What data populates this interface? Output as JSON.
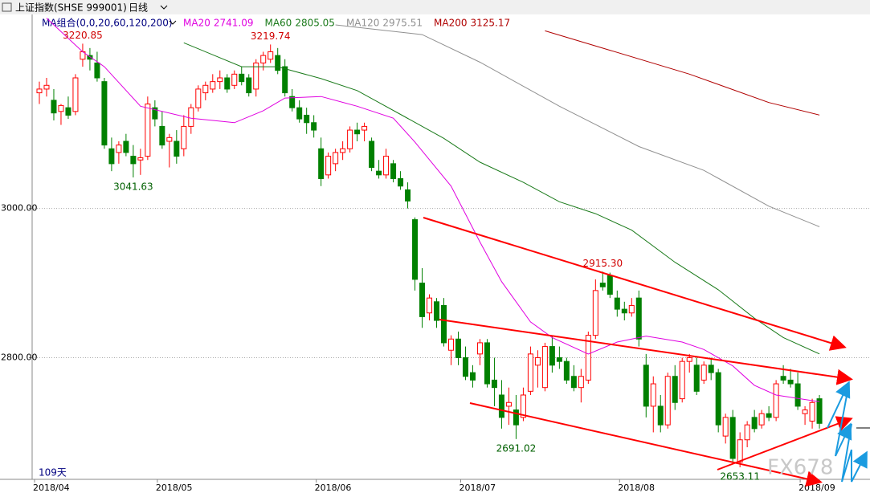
{
  "chart_data": {
    "type": "candlestick",
    "title": "上证指数(SHSE 999001)",
    "period": "日线",
    "indicator": "MA组合(0,0,20,60,120,200)",
    "day_count": "109天",
    "watermark": "FX678",
    "up_color": "#ff0000",
    "down_color": "#008000",
    "grid": true,
    "xlim": [
      -1,
      115
    ],
    "ylim": [
      2637,
      3260
    ],
    "yticks": [
      {
        "value": 2800,
        "label": "2800.00"
      },
      {
        "value": 3000,
        "label": "3000.00"
      }
    ],
    "xticks": [
      {
        "value": 0,
        "label": "2018/04"
      },
      {
        "value": 17,
        "label": "2018/05"
      },
      {
        "value": 39,
        "label": "2018/06"
      },
      {
        "value": 59,
        "label": "2018/07"
      },
      {
        "value": 81,
        "label": "2018/08"
      },
      {
        "value": 106,
        "label": "2018/09"
      }
    ],
    "candles": [
      [
        3155,
        3170,
        3140,
        3160
      ],
      [
        3160,
        3175,
        3150,
        3165
      ],
      [
        3145,
        3160,
        3118,
        3128
      ],
      [
        3130,
        3140,
        3112,
        3138
      ],
      [
        3135,
        3150,
        3120,
        3125
      ],
      [
        3130,
        3180,
        3125,
        3175
      ],
      [
        3200,
        3220.85,
        3190,
        3210
      ],
      [
        3205,
        3215,
        3185,
        3200
      ],
      [
        3195,
        3210,
        3170,
        3175
      ],
      [
        3170,
        3175,
        3080,
        3085
      ],
      [
        3080,
        3095,
        3050,
        3060
      ],
      [
        3075,
        3090,
        3060,
        3085
      ],
      [
        3090,
        3100,
        3070,
        3075
      ],
      [
        3070,
        3085,
        3041.63,
        3060
      ],
      [
        3065,
        3080,
        3045,
        3068
      ],
      [
        3070,
        3150,
        3065,
        3140
      ],
      [
        3135,
        3145,
        3110,
        3120
      ],
      [
        3110,
        3130,
        3080,
        3085
      ],
      [
        3090,
        3100,
        3055,
        3095
      ],
      [
        3090,
        3105,
        3060,
        3070
      ],
      [
        3080,
        3125,
        3070,
        3110
      ],
      [
        3110,
        3140,
        3100,
        3135
      ],
      [
        3135,
        3165,
        3130,
        3160
      ],
      [
        3155,
        3170,
        3145,
        3165
      ],
      [
        3160,
        3180,
        3155,
        3170
      ],
      [
        3170,
        3185,
        3160,
        3175
      ],
      [
        3175,
        3180,
        3155,
        3160
      ],
      [
        3165,
        3185,
        3160,
        3180
      ],
      [
        3180,
        3190,
        3165,
        3170
      ],
      [
        3175,
        3180,
        3150,
        3155
      ],
      [
        3160,
        3200,
        3150,
        3195
      ],
      [
        3195,
        3210,
        3185,
        3205
      ],
      [
        3200,
        3219.74,
        3195,
        3210
      ],
      [
        3205,
        3215,
        3180,
        3185
      ],
      [
        3190,
        3200,
        3150,
        3155
      ],
      [
        3150,
        3160,
        3130,
        3135
      ],
      [
        3135,
        3145,
        3115,
        3120
      ],
      [
        3125,
        3135,
        3100,
        3115
      ],
      [
        3115,
        3125,
        3095,
        3105
      ],
      [
        3080,
        3095,
        3030,
        3040
      ],
      [
        3045,
        3075,
        3040,
        3070
      ],
      [
        3060,
        3080,
        3050,
        3075
      ],
      [
        3075,
        3090,
        3065,
        3080
      ],
      [
        3080,
        3110,
        3075,
        3105
      ],
      [
        3105,
        3115,
        3090,
        3100
      ],
      [
        3105,
        3115,
        3090,
        3110
      ],
      [
        3090,
        3095,
        3050,
        3055
      ],
      [
        3050,
        3065,
        3040,
        3045
      ],
      [
        3045,
        3080,
        3040,
        3070
      ],
      [
        3060,
        3065,
        3035,
        3040
      ],
      [
        3040,
        3050,
        3025,
        3030
      ],
      [
        3025,
        3035,
        3000,
        3010
      ],
      [
        2985,
        2988,
        2890,
        2905
      ],
      [
        2900,
        2920,
        2840,
        2855
      ],
      [
        2860,
        2885,
        2850,
        2880
      ],
      [
        2875,
        2880,
        2840,
        2850
      ],
      [
        2870,
        2880,
        2815,
        2820
      ],
      [
        2810,
        2830,
        2790,
        2825
      ],
      [
        2825,
        2835,
        2790,
        2800
      ],
      [
        2800,
        2815,
        2770,
        2775
      ],
      [
        2780,
        2790,
        2760,
        2770
      ],
      [
        2805,
        2825,
        2790,
        2820
      ],
      [
        2820,
        2825,
        2760,
        2765
      ],
      [
        2770,
        2800,
        2735,
        2760
      ],
      [
        2750,
        2770,
        2705,
        2720
      ],
      [
        2735,
        2760,
        2710,
        2740
      ],
      [
        2730,
        2750,
        2691.02,
        2710
      ],
      [
        2720,
        2760,
        2715,
        2750
      ],
      [
        2755,
        2815,
        2750,
        2805
      ],
      [
        2790,
        2810,
        2760,
        2800
      ],
      [
        2760,
        2820,
        2755,
        2815
      ],
      [
        2815,
        2830,
        2780,
        2790
      ],
      [
        2800,
        2815,
        2785,
        2795
      ],
      [
        2795,
        2800,
        2765,
        2770
      ],
      [
        2775,
        2790,
        2755,
        2760
      ],
      [
        2760,
        2785,
        2740,
        2775
      ],
      [
        2770,
        2835,
        2765,
        2830
      ],
      [
        2830,
        2905,
        2825,
        2890
      ],
      [
        2900,
        2915.3,
        2890,
        2895
      ],
      [
        2910,
        2914,
        2880,
        2885
      ],
      [
        2880,
        2890,
        2855,
        2865
      ],
      [
        2865,
        2875,
        2850,
        2860
      ],
      [
        2860,
        2880,
        2855,
        2870
      ],
      [
        2880,
        2890,
        2815,
        2825
      ],
      [
        2790,
        2805,
        2720,
        2735
      ],
      [
        2735,
        2775,
        2700,
        2765
      ],
      [
        2735,
        2750,
        2700,
        2710
      ],
      [
        2710,
        2780,
        2705,
        2775
      ],
      [
        2775,
        2790,
        2730,
        2740
      ],
      [
        2745,
        2800,
        2740,
        2795
      ],
      [
        2795,
        2805,
        2780,
        2800
      ],
      [
        2790,
        2800,
        2750,
        2755
      ],
      [
        2770,
        2795,
        2765,
        2790
      ],
      [
        2790,
        2800,
        2770,
        2780
      ],
      [
        2780,
        2785,
        2700,
        2710
      ],
      [
        2695,
        2725,
        2685,
        2720
      ],
      [
        2720,
        2730,
        2660,
        2665
      ],
      [
        2660,
        2700,
        2653.11,
        2690
      ],
      [
        2690,
        2715,
        2680,
        2710
      ],
      [
        2720,
        2730,
        2700,
        2705
      ],
      [
        2710,
        2730,
        2705,
        2725
      ],
      [
        2725,
        2735,
        2715,
        2720
      ],
      [
        2720,
        2770,
        2715,
        2765
      ],
      [
        2775,
        2790,
        2765,
        2770
      ],
      [
        2770,
        2785,
        2760,
        2765
      ],
      [
        2765,
        2780,
        2730,
        2735
      ],
      [
        2725,
        2735,
        2710,
        2730
      ],
      [
        2715,
        2745,
        2705,
        2740
      ],
      [
        2745,
        2750,
        2705,
        2712
      ]
    ],
    "series": [
      {
        "name": "MA20",
        "color": "#e000e0",
        "x": [
          1,
          6,
          9,
          14,
          21,
          27,
          31,
          34,
          39,
          44,
          49,
          52,
          57,
          61,
          64,
          68,
          71,
          76,
          80,
          84,
          89,
          92,
          96,
          99,
          102,
          108
        ],
        "values": [
          3255,
          3210,
          3190,
          3137,
          3121,
          3115,
          3131,
          3148,
          3150,
          3137,
          3121,
          3089,
          3030,
          2955,
          2902,
          2848,
          2827,
          2805,
          2821,
          2829,
          2821,
          2811,
          2789,
          2763,
          2750,
          2741.09
        ]
      },
      {
        "name": "MA60",
        "color": "#1a7a1a",
        "x": [
          20,
          28,
          33,
          39,
          44,
          50,
          56,
          61,
          67,
          72,
          77,
          82,
          88,
          94,
          99,
          103,
          108
        ],
        "values": [
          3222,
          3190,
          3190,
          3174,
          3158,
          3126,
          3094,
          3062,
          3035,
          3009,
          2993,
          2971,
          2928,
          2891,
          2853,
          2827,
          2805.05
        ]
      },
      {
        "name": "MA120",
        "color": "#909090",
        "x": [
          41,
          53,
          61,
          72,
          83,
          92,
          101,
          108
        ],
        "values": [
          3246,
          3233,
          3196,
          3137,
          3083,
          3051,
          3003,
          2975.51
        ]
      },
      {
        "name": "MA200",
        "color": "#b00000",
        "x": [
          70,
          79,
          90,
          101,
          108
        ],
        "values": [
          3238,
          3212,
          3180,
          3142,
          3125.17
        ]
      }
    ],
    "annotations": [
      {
        "value": 3220.85,
        "label": "3220.85"
      },
      {
        "value": 3041.63,
        "label": "3041.63"
      },
      {
        "value": 3219.74,
        "label": "3219.74"
      },
      {
        "value": 2915.3,
        "label": "2915.30"
      },
      {
        "value": 2691.02,
        "label": "2691.02"
      },
      {
        "value": 2653.11,
        "label": "2653.11"
      }
    ]
  }
}
